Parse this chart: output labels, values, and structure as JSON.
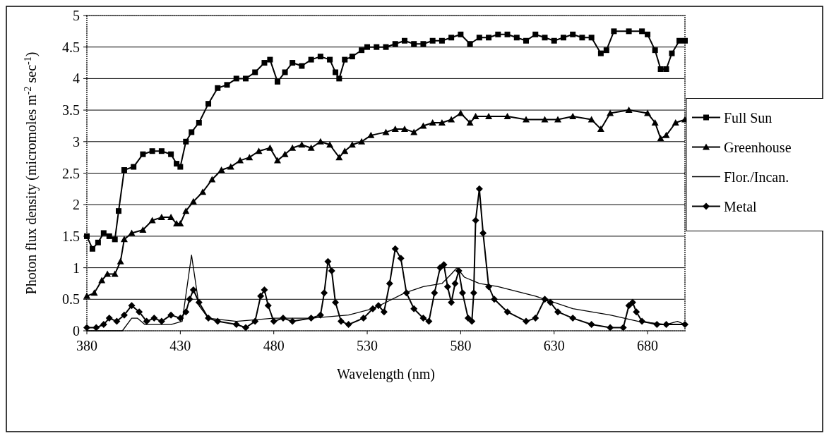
{
  "chart_data": {
    "type": "line",
    "xlabel": "Wavelength (nm)",
    "ylabel": "Photon flux density (micromoles m$^{-2}$ sec$^{-1}$)",
    "xlim": [
      380,
      700
    ],
    "xticks": [
      380,
      430,
      480,
      530,
      580,
      630,
      680
    ],
    "ylim": [
      0,
      5
    ],
    "yticks": [
      0,
      0.5,
      1,
      1.5,
      2,
      2.5,
      3,
      3.5,
      4,
      4.5,
      5
    ],
    "grid": "y",
    "legend": "right",
    "series": [
      {
        "name": "Full Sun",
        "color": "#000000",
        "marker": "square",
        "x": [
          380,
          383,
          386,
          389,
          392,
          395,
          397,
          400,
          405,
          410,
          415,
          420,
          425,
          428,
          430,
          433,
          436,
          440,
          445,
          450,
          455,
          460,
          465,
          470,
          475,
          478,
          482,
          486,
          490,
          495,
          500,
          505,
          510,
          513,
          515,
          518,
          522,
          527,
          530,
          535,
          540,
          545,
          550,
          555,
          560,
          565,
          570,
          575,
          580,
          585,
          590,
          595,
          600,
          605,
          610,
          615,
          620,
          625,
          630,
          635,
          640,
          645,
          650,
          655,
          658,
          662,
          670,
          677,
          680,
          684,
          687,
          690,
          693,
          697,
          700
        ],
        "values": [
          1.5,
          1.3,
          1.4,
          1.55,
          1.5,
          1.45,
          1.9,
          2.55,
          2.6,
          2.8,
          2.85,
          2.85,
          2.8,
          2.65,
          2.6,
          3.0,
          3.15,
          3.3,
          3.6,
          3.85,
          3.9,
          4.0,
          4.0,
          4.1,
          4.25,
          4.3,
          3.95,
          4.1,
          4.25,
          4.2,
          4.3,
          4.35,
          4.3,
          4.1,
          4.0,
          4.3,
          4.35,
          4.45,
          4.5,
          4.5,
          4.5,
          4.55,
          4.6,
          4.55,
          4.55,
          4.6,
          4.6,
          4.65,
          4.7,
          4.55,
          4.65,
          4.65,
          4.7,
          4.7,
          4.65,
          4.6,
          4.7,
          4.65,
          4.6,
          4.65,
          4.7,
          4.65,
          4.65,
          4.4,
          4.45,
          4.75,
          4.75,
          4.75,
          4.7,
          4.45,
          4.15,
          4.15,
          4.4,
          4.6,
          4.6
        ]
      },
      {
        "name": "Greenhouse",
        "color": "#000000",
        "marker": "triangle",
        "x": [
          380,
          384,
          388,
          391,
          395,
          398,
          400,
          404,
          410,
          415,
          420,
          425,
          428,
          430,
          433,
          437,
          442,
          447,
          452,
          457,
          462,
          467,
          472,
          478,
          482,
          486,
          490,
          495,
          500,
          505,
          510,
          515,
          518,
          522,
          527,
          532,
          540,
          545,
          550,
          555,
          560,
          565,
          570,
          575,
          580,
          585,
          588,
          595,
          605,
          615,
          625,
          632,
          640,
          650,
          655,
          660,
          670,
          680,
          684,
          687,
          690,
          695,
          700
        ],
        "values": [
          0.55,
          0.6,
          0.8,
          0.9,
          0.9,
          1.1,
          1.45,
          1.55,
          1.6,
          1.75,
          1.8,
          1.8,
          1.7,
          1.7,
          1.9,
          2.05,
          2.2,
          2.4,
          2.55,
          2.6,
          2.7,
          2.75,
          2.85,
          2.9,
          2.7,
          2.8,
          2.9,
          2.95,
          2.9,
          3.0,
          2.95,
          2.75,
          2.85,
          2.95,
          3.0,
          3.1,
          3.15,
          3.2,
          3.2,
          3.15,
          3.25,
          3.3,
          3.3,
          3.35,
          3.45,
          3.3,
          3.4,
          3.4,
          3.4,
          3.35,
          3.35,
          3.35,
          3.4,
          3.35,
          3.2,
          3.45,
          3.5,
          3.45,
          3.3,
          3.05,
          3.1,
          3.3,
          3.35
        ]
      },
      {
        "name": "Flor./Incan.",
        "color": "#000000",
        "marker": "none",
        "x": [
          380,
          399,
          404,
          407,
          411,
          418,
          425,
          431,
          436,
          440,
          445,
          460,
          480,
          500,
          520,
          533,
          540,
          550,
          560,
          570,
          575,
          578,
          582,
          590,
          600,
          620,
          640,
          660,
          675,
          690,
          696,
          700
        ],
        "values": [
          0,
          0,
          0.2,
          0.2,
          0.1,
          0.1,
          0.1,
          0.15,
          1.2,
          0.4,
          0.2,
          0.15,
          0.2,
          0.2,
          0.25,
          0.35,
          0.45,
          0.6,
          0.7,
          0.75,
          0.9,
          1.0,
          0.85,
          0.75,
          0.7,
          0.55,
          0.35,
          0.25,
          0.15,
          0.1,
          0.15,
          0.1
        ]
      },
      {
        "name": "Metal",
        "color": "#000000",
        "marker": "diamond",
        "x": [
          380,
          385,
          389,
          392,
          396,
          400,
          404,
          408,
          412,
          416,
          420,
          425,
          430,
          433,
          435,
          437,
          440,
          445,
          450,
          460,
          465,
          470,
          473,
          475,
          477,
          480,
          485,
          490,
          500,
          505,
          507,
          509,
          511,
          513,
          516,
          520,
          528,
          533,
          536,
          539,
          542,
          545,
          548,
          551,
          555,
          560,
          563,
          566,
          569,
          571,
          573,
          575,
          577,
          579,
          581,
          584,
          586,
          587,
          588,
          590,
          592,
          595,
          598,
          605,
          615,
          620,
          625,
          628,
          632,
          640,
          650,
          660,
          667,
          670,
          672,
          674,
          677,
          685,
          690,
          700
        ],
        "values": [
          0.05,
          0.05,
          0.1,
          0.2,
          0.15,
          0.25,
          0.4,
          0.3,
          0.15,
          0.2,
          0.15,
          0.25,
          0.2,
          0.3,
          0.5,
          0.65,
          0.45,
          0.2,
          0.15,
          0.1,
          0.05,
          0.15,
          0.55,
          0.65,
          0.4,
          0.15,
          0.2,
          0.15,
          0.2,
          0.25,
          0.6,
          1.1,
          0.95,
          0.45,
          0.15,
          0.1,
          0.2,
          0.35,
          0.4,
          0.3,
          0.75,
          1.3,
          1.15,
          0.6,
          0.35,
          0.2,
          0.15,
          0.6,
          1.0,
          1.05,
          0.7,
          0.45,
          0.75,
          0.95,
          0.6,
          0.2,
          0.15,
          0.6,
          1.75,
          2.25,
          1.55,
          0.7,
          0.5,
          0.3,
          0.15,
          0.2,
          0.5,
          0.45,
          0.3,
          0.2,
          0.1,
          0.05,
          0.05,
          0.4,
          0.45,
          0.3,
          0.15,
          0.1,
          0.1,
          0.1
        ]
      }
    ]
  }
}
